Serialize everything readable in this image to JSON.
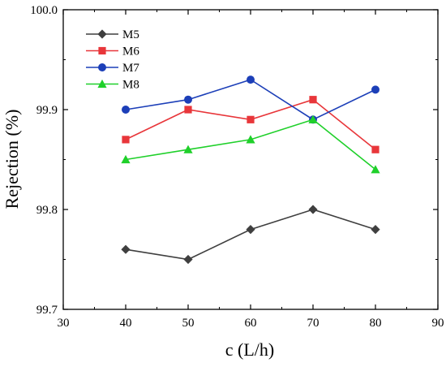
{
  "chart_data": {
    "type": "line",
    "title": "",
    "xlabel": "c (L/h)",
    "ylabel": "Rejection (%)",
    "xlim": [
      30,
      90
    ],
    "ylim": [
      99.7,
      100.0
    ],
    "x_ticks": [
      "30",
      "40",
      "50",
      "60",
      "70",
      "80",
      "90"
    ],
    "y_ticks": [
      "99.7",
      "99.8",
      "99.9",
      "100.0"
    ],
    "grid": false,
    "legend_position": "top-left",
    "x": [
      40,
      50,
      60,
      70,
      80
    ],
    "series": [
      {
        "name": "M5",
        "color": "#3f3f3f",
        "marker": "diamond",
        "values": [
          99.76,
          99.75,
          99.78,
          99.8,
          99.78
        ]
      },
      {
        "name": "M6",
        "color": "#e8363a",
        "marker": "square",
        "values": [
          99.87,
          99.9,
          99.89,
          99.91,
          99.86
        ]
      },
      {
        "name": "M7",
        "color": "#1c3fb8",
        "marker": "circle",
        "values": [
          99.9,
          99.91,
          99.93,
          99.89,
          99.92
        ]
      },
      {
        "name": "M8",
        "color": "#1fd02a",
        "marker": "triangle",
        "values": [
          99.85,
          99.86,
          99.87,
          99.89,
          99.84
        ]
      }
    ]
  }
}
